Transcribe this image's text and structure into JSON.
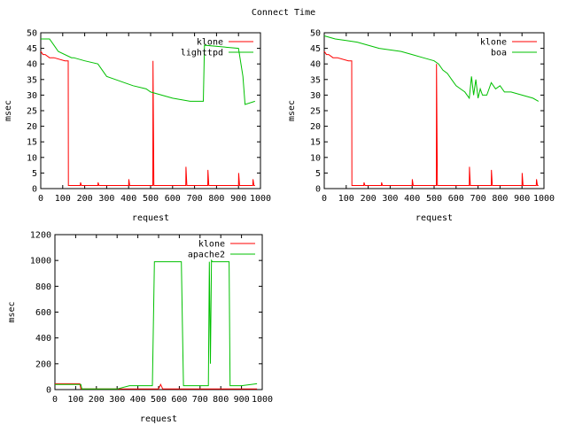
{
  "title": "Connect Time",
  "colors": {
    "klone": "#ff0000",
    "other": "#00c000",
    "axis": "#000000"
  },
  "chart_data": [
    {
      "type": "line",
      "xlabel": "request",
      "ylabel": "msec",
      "xlim": [
        0,
        1000
      ],
      "ylim": [
        0,
        50
      ],
      "xticks": [
        0,
        100,
        200,
        300,
        400,
        500,
        600,
        700,
        800,
        900,
        1000
      ],
      "yticks": [
        0,
        5,
        10,
        15,
        20,
        25,
        30,
        35,
        40,
        45,
        50
      ],
      "legend_position": "top-right",
      "series": [
        {
          "name": "klone",
          "x": [
            0,
            10,
            20,
            40,
            60,
            110,
            125,
            126,
            140,
            180,
            181,
            185,
            260,
            261,
            265,
            400,
            401,
            405,
            510,
            511,
            515,
            660,
            661,
            665,
            760,
            761,
            765,
            900,
            901,
            905,
            965,
            966,
            970,
            975
          ],
          "y": [
            44,
            43,
            43,
            42,
            42,
            41,
            41,
            1,
            1,
            1,
            2,
            1,
            1,
            2,
            1,
            1,
            3,
            1,
            1,
            41,
            1,
            1,
            7,
            1,
            1,
            6,
            1,
            1,
            5,
            1,
            1,
            3,
            1,
            1
          ]
        },
        {
          "name": "lighttpd",
          "x": [
            0,
            40,
            60,
            80,
            140,
            150,
            200,
            260,
            280,
            300,
            340,
            380,
            420,
            480,
            500,
            550,
            600,
            680,
            740,
            745,
            900,
            920,
            930,
            975
          ],
          "y": [
            48,
            48,
            46,
            44,
            42,
            42,
            41,
            40,
            38,
            36,
            35,
            34,
            33,
            32,
            31,
            30,
            29,
            28,
            28,
            46,
            45,
            36,
            27,
            28
          ]
        }
      ]
    },
    {
      "type": "line",
      "xlabel": "request",
      "ylabel": "msec",
      "xlim": [
        0,
        1000
      ],
      "ylim": [
        0,
        50
      ],
      "xticks": [
        0,
        100,
        200,
        300,
        400,
        500,
        600,
        700,
        800,
        900,
        1000
      ],
      "yticks": [
        0,
        5,
        10,
        15,
        20,
        25,
        30,
        35,
        40,
        45,
        50
      ],
      "legend_position": "top-right",
      "series": [
        {
          "name": "klone",
          "x": [
            0,
            10,
            20,
            40,
            60,
            110,
            125,
            126,
            140,
            180,
            181,
            185,
            260,
            261,
            265,
            400,
            401,
            405,
            510,
            511,
            515,
            660,
            661,
            665,
            760,
            761,
            765,
            900,
            901,
            905,
            965,
            966,
            970,
            975
          ],
          "y": [
            44,
            43,
            43,
            42,
            42,
            41,
            41,
            1,
            1,
            1,
            2,
            1,
            1,
            2,
            1,
            1,
            3,
            1,
            1,
            40,
            1,
            1,
            7,
            1,
            1,
            6,
            1,
            1,
            5,
            1,
            1,
            3,
            1,
            1
          ]
        },
        {
          "name": "boa",
          "x": [
            0,
            50,
            100,
            150,
            200,
            250,
            300,
            350,
            400,
            450,
            500,
            520,
            540,
            560,
            580,
            600,
            620,
            640,
            660,
            670,
            680,
            690,
            700,
            710,
            720,
            740,
            760,
            780,
            800,
            820,
            850,
            900,
            950,
            975
          ],
          "y": [
            49,
            48,
            47.5,
            47,
            46,
            45,
            44.5,
            44,
            43,
            42,
            41,
            40,
            38,
            37,
            35,
            33,
            32,
            31,
            29,
            36,
            30,
            35,
            29,
            32,
            30,
            30,
            34,
            32,
            33,
            31,
            31,
            30,
            29,
            28
          ]
        }
      ]
    },
    {
      "type": "line",
      "xlabel": "request",
      "ylabel": "msec",
      "xlim": [
        0,
        1000
      ],
      "ylim": [
        0,
        1200
      ],
      "xticks": [
        0,
        100,
        200,
        300,
        400,
        500,
        600,
        700,
        800,
        900,
        1000
      ],
      "yticks": [
        0,
        200,
        400,
        600,
        800,
        1000,
        1200
      ],
      "legend_position": "top-right",
      "series": [
        {
          "name": "klone",
          "x": [
            0,
            120,
            125,
            130,
            500,
            510,
            520,
            975
          ],
          "y": [
            45,
            45,
            5,
            5,
            5,
            40,
            5,
            5
          ]
        },
        {
          "name": "apache2",
          "x": [
            0,
            125,
            130,
            300,
            360,
            470,
            480,
            610,
            615,
            620,
            740,
            745,
            750,
            755,
            760,
            770,
            840,
            845,
            900,
            975
          ],
          "y": [
            40,
            40,
            5,
            5,
            30,
            30,
            990,
            990,
            500,
            30,
            30,
            990,
            200,
            1000,
            990,
            990,
            990,
            30,
            30,
            45
          ]
        }
      ]
    }
  ]
}
